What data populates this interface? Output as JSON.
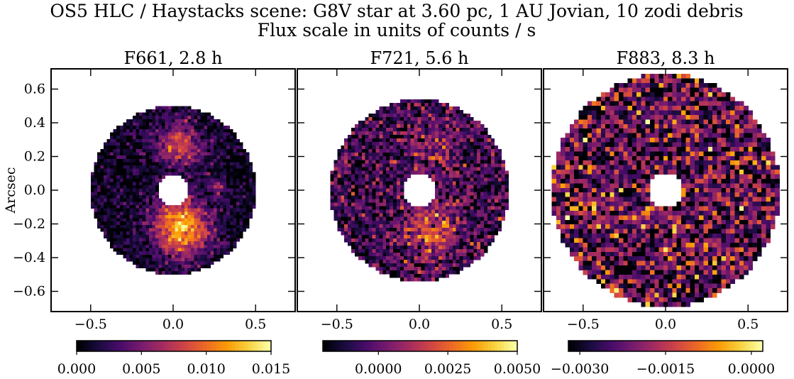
{
  "figure": {
    "title_line1": "OS5 HLC / Haystacks scene: G8V star at 3.60 pc, 1 AU Jovian, 10 zodi debris",
    "title_line2": "Flux scale in units of counts / s",
    "ylabel": "Arcsec"
  },
  "colors": {
    "colormap": [
      "#000004",
      "#1b0c41",
      "#4a0c6b",
      "#781c6d",
      "#a52c60",
      "#cf4446",
      "#ed6925",
      "#fb9b06",
      "#f7d13d",
      "#fcffa4"
    ],
    "frame": "#000000",
    "background": "#ffffff"
  },
  "chart_data": [
    {
      "type": "heatmap",
      "title": "F661, 2.8 h",
      "xlabel": "",
      "ylabel": "Arcsec",
      "xlim": [
        -0.74,
        0.74
      ],
      "ylim": [
        -0.72,
        0.72
      ],
      "x_ticks": [
        -0.5,
        0.0,
        0.5
      ],
      "x_tick_labels": [
        "−0.5",
        "0.0",
        "0.5"
      ],
      "y_ticks": [
        0.6,
        0.4,
        0.2,
        0.0,
        -0.2,
        -0.4,
        -0.6
      ],
      "y_tick_labels": [
        "0.6",
        "0.4",
        "0.2",
        "0.0",
        "−0.2",
        "−0.4",
        "−0.6"
      ],
      "mask_inner_radius": 0.09,
      "mask_outer_radius": 0.5,
      "colorbar": {
        "range": [
          0.0,
          0.015
        ],
        "ticks": [
          0.0,
          0.005,
          0.01,
          0.015
        ],
        "tick_labels": [
          "0.000",
          "0.005",
          "0.010",
          "0.015"
        ]
      },
      "features": [
        {
          "x": 0.05,
          "y": -0.22,
          "sigma": 0.12,
          "peak": 0.012
        },
        {
          "x": 0.04,
          "y": 0.27,
          "sigma": 0.1,
          "peak": 0.007
        },
        {
          "x": 0.27,
          "y": 0.02,
          "sigma": 0.03,
          "peak": 0.006
        }
      ],
      "background_level": 0.0008,
      "noise_level": 0.0016
    },
    {
      "type": "heatmap",
      "title": "F721, 5.6 h",
      "xlabel": "",
      "ylabel": "",
      "xlim": [
        -0.74,
        0.74
      ],
      "ylim": [
        -0.72,
        0.72
      ],
      "x_ticks": [
        -0.5,
        0.0,
        0.5
      ],
      "x_tick_labels": [
        "−0.5",
        "0.0",
        "0.5"
      ],
      "y_ticks": [
        0.6,
        0.4,
        0.2,
        0.0,
        -0.2,
        -0.4,
        -0.6
      ],
      "y_tick_labels": [],
      "mask_inner_radius": 0.1,
      "mask_outer_radius": 0.54,
      "colorbar": {
        "range": [
          -0.002,
          0.005
        ],
        "ticks": [
          0.0,
          0.0025,
          0.005
        ],
        "tick_labels": [
          "0.0000",
          "0.0025",
          "0.0050"
        ]
      },
      "features": [
        {
          "x": 0.08,
          "y": -0.24,
          "sigma": 0.11,
          "peak": 0.003
        },
        {
          "x": 0.1,
          "y": 0.28,
          "sigma": 0.1,
          "peak": 0.0013
        }
      ],
      "background_level": -0.0007,
      "noise_level": 0.0012
    },
    {
      "type": "heatmap",
      "title": "F883, 8.3 h",
      "xlabel": "",
      "ylabel": "",
      "xlim": [
        -0.74,
        0.74
      ],
      "ylim": [
        -0.72,
        0.72
      ],
      "x_ticks": [
        -0.5,
        0.0,
        0.5
      ],
      "x_tick_labels": [
        "−0.5",
        "0.0",
        "0.5"
      ],
      "y_ticks": [
        0.6,
        0.4,
        0.2,
        0.0,
        -0.2,
        -0.4,
        -0.6
      ],
      "y_tick_labels": [],
      "mask_inner_radius": 0.1,
      "mask_outer_radius": 0.69,
      "colorbar": {
        "range": [
          -0.0032,
          0.0002
        ],
        "ticks": [
          -0.003,
          -0.0015,
          0.0
        ],
        "tick_labels": [
          "−0.0030",
          "−0.0015",
          "0.0000"
        ]
      },
      "features": [],
      "background_level": -0.0023,
      "noise_level": 0.0009
    }
  ]
}
